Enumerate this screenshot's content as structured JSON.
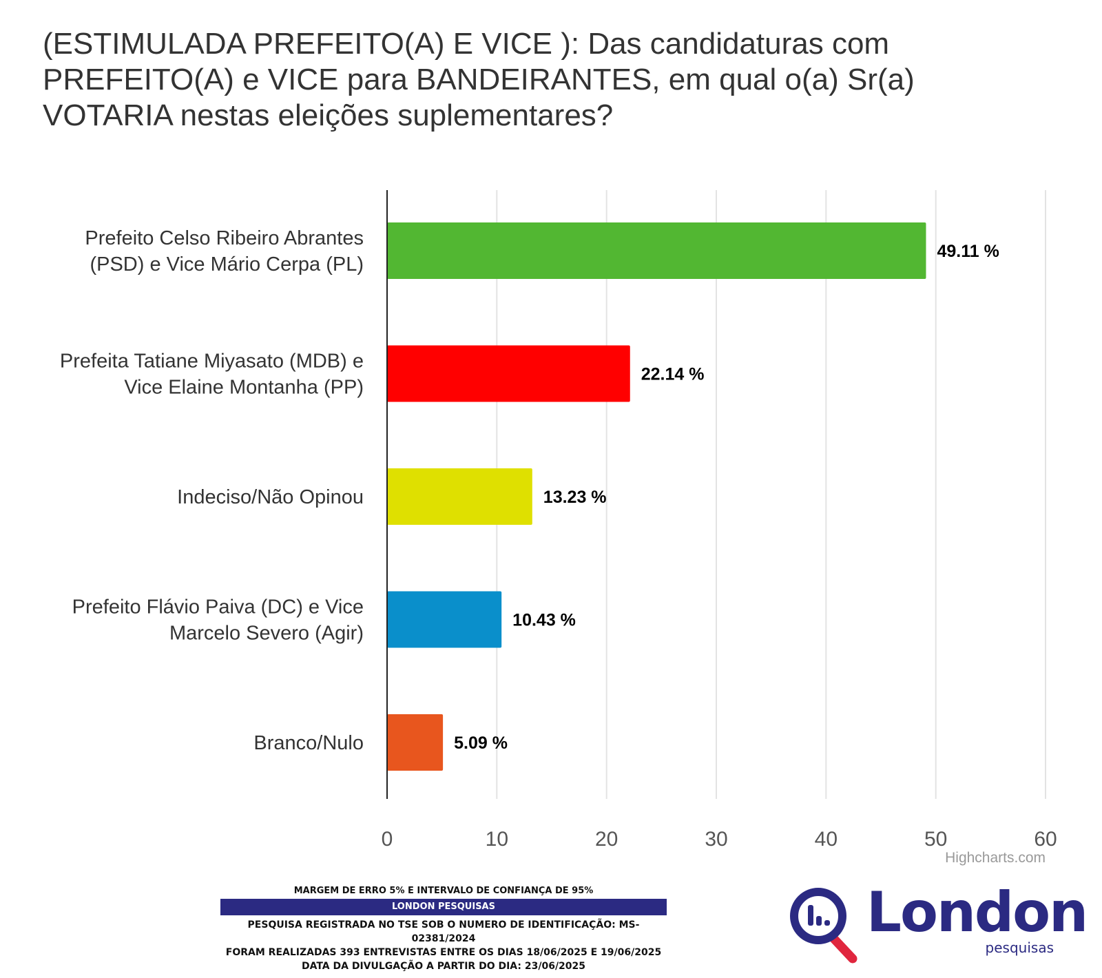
{
  "chart_data": {
    "type": "bar",
    "orientation": "horizontal",
    "title": "(ESTIMULADA PREFEITO(A) E VICE ): Das candidaturas com PREFEITO(A) e VICE para BANDEIRANTES, em qual o(a) Sr(a) VOTARIA nestas eleições suplementares?",
    "categories": [
      [
        "Prefeito Celso Ribeiro Abrantes",
        "(PSD) e Vice Mário Cerpa (PL)"
      ],
      [
        "Prefeita Tatiane Miyasato (MDB) e",
        "Vice Elaine Montanha (PP)"
      ],
      [
        "Indeciso/Não Opinou"
      ],
      [
        "Prefeito Flávio Paiva (DC) e Vice",
        "Marcelo Severo (Agir)"
      ],
      [
        "Branco/Nulo"
      ]
    ],
    "values": [
      49.11,
      22.14,
      13.23,
      10.43,
      5.09
    ],
    "data_labels": [
      "49.11 %",
      "22.14 %",
      "13.23 %",
      "10.43 %",
      "5.09 %"
    ],
    "colors": [
      "#52b732",
      "#ff0000",
      "#dfe000",
      "#0a8fcb",
      "#e8561e"
    ],
    "xlim": [
      0,
      60
    ],
    "ticks": [
      0,
      10,
      20,
      30,
      40,
      50,
      60
    ],
    "tick_labels": [
      "0",
      "10",
      "20",
      "30",
      "40",
      "50",
      "60"
    ],
    "grid": true,
    "credits": "Highcharts.com"
  },
  "footer": {
    "margin_text": "MARGEM DE ERRO 5% E INTERVALO DE CONFIANÇA DE 95%",
    "band_text": "LONDON PESQUISAS",
    "registration": "PESQUISA REGISTRADA NO TSE SOB O NUMERO DE IDENTIFICAÇÃO: MS-02381/2024",
    "interviews": "FORAM REALIZADAS 393 ENTREVISTAS ENTRE OS DIAS 18/06/2025 E 19/06/2025",
    "release": "DATA DA DIVULGAÇÃO A PARTIR DO DIA: 23/06/2025"
  },
  "logo": {
    "word": "London",
    "sub": "pesquisas",
    "primary_color": "#2b2a82",
    "accent_color": "#e0263e"
  }
}
